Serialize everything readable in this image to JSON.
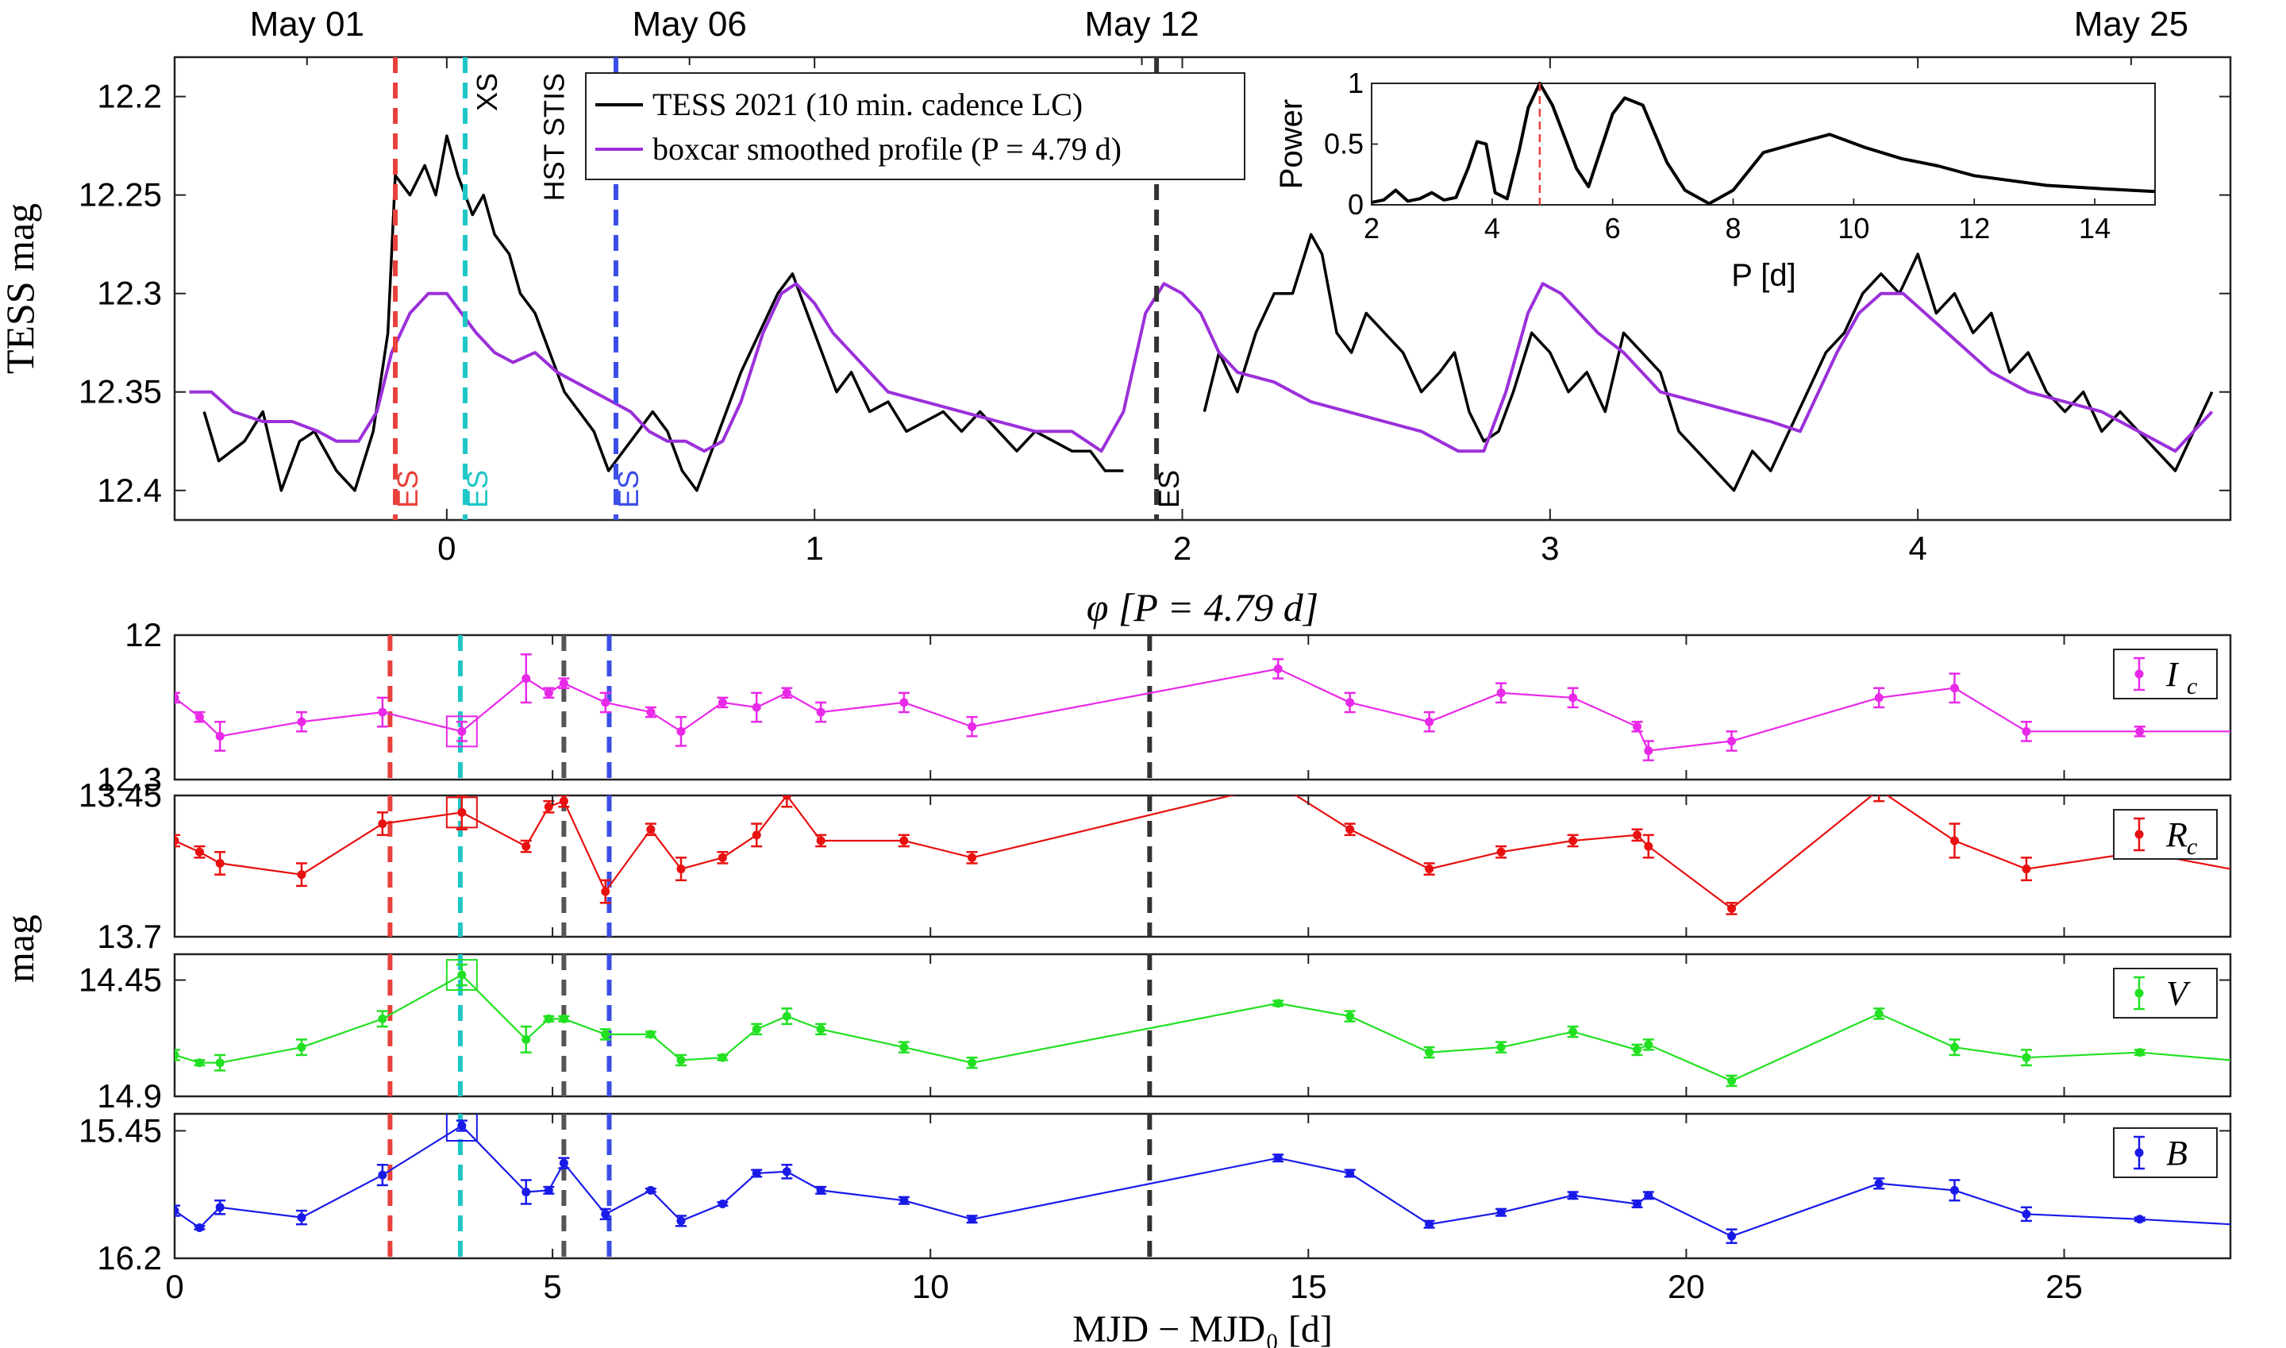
{
  "chart_data": [
    {
      "panel": "tess",
      "type": "line",
      "ylabel": "TESS mag",
      "xlabel": "φ [P = 4.79 d]",
      "x_axis": "phase",
      "xlim": [
        -0.74,
        4.85
      ],
      "ylim": [
        12.415,
        12.18
      ],
      "y_reversed": true,
      "xticks": [
        0,
        1,
        2,
        3,
        4
      ],
      "yticks": [
        12.2,
        12.25,
        12.3,
        12.35,
        12.4
      ],
      "xtick_labels": [
        "0",
        "1",
        "2",
        "3",
        "4"
      ],
      "ytick_labels": [
        "12.2",
        "12.25",
        "12.3",
        "12.35",
        "12.4"
      ],
      "date_labels": [
        {
          "text": "May 01",
          "phase": -0.38
        },
        {
          "text": "May 06",
          "phase": 0.66
        },
        {
          "text": "May 12",
          "phase": 1.89
        },
        {
          "text": "May 25",
          "phase": 4.58
        }
      ],
      "legend": {
        "position": "top-center",
        "entries": [
          {
            "label": "TESS 2021 (10 min. cadence LC)",
            "color": "#000000"
          },
          {
            "label": "boxcar smoothed profile (P = 4.79 d)",
            "color": "#9b30d9"
          }
        ]
      },
      "series": [
        {
          "name": "TESS 2021 (10 min. cadence LC)",
          "color": "#000000",
          "x": [
            -0.66,
            -0.62,
            -0.55,
            -0.5,
            -0.45,
            -0.4,
            -0.36,
            -0.3,
            -0.25,
            -0.2,
            -0.16,
            -0.14,
            -0.1,
            -0.06,
            -0.03,
            0.0,
            0.03,
            0.07,
            0.1,
            0.13,
            0.17,
            0.2,
            0.24,
            0.28,
            0.32,
            0.36,
            0.4,
            0.44,
            0.48,
            0.52,
            0.56,
            0.6,
            0.64,
            0.68,
            0.72,
            0.76,
            0.8,
            0.85,
            0.9,
            0.94,
            0.98,
            1.02,
            1.06,
            1.1,
            1.15,
            1.2,
            1.25,
            1.3,
            1.35,
            1.4,
            1.45,
            1.5,
            1.55,
            1.6,
            1.65,
            1.7,
            1.75,
            1.79,
            1.84
          ],
          "y": [
            12.36,
            12.385,
            12.375,
            12.36,
            12.4,
            12.375,
            12.37,
            12.39,
            12.4,
            12.37,
            12.32,
            12.24,
            12.25,
            12.235,
            12.25,
            12.22,
            12.24,
            12.26,
            12.25,
            12.27,
            12.28,
            12.3,
            12.31,
            12.33,
            12.35,
            12.36,
            12.37,
            12.39,
            12.38,
            12.37,
            12.36,
            12.37,
            12.39,
            12.4,
            12.38,
            12.36,
            12.34,
            12.32,
            12.3,
            12.29,
            12.31,
            12.33,
            12.35,
            12.34,
            12.36,
            12.355,
            12.37,
            12.365,
            12.36,
            12.37,
            12.36,
            12.37,
            12.38,
            12.37,
            12.375,
            12.38,
            12.38,
            12.39,
            12.39
          ]
        },
        {
          "name": "TESS 2021 (10 min. cadence LC) cont.",
          "color": "#000000",
          "x": [
            2.06,
            2.1,
            2.15,
            2.2,
            2.25,
            2.3,
            2.35,
            2.38,
            2.42,
            2.46,
            2.5,
            2.55,
            2.6,
            2.65,
            2.7,
            2.74,
            2.78,
            2.82,
            2.86,
            2.9,
            2.95,
            3.0,
            3.05,
            3.1,
            3.15,
            3.2,
            3.25,
            3.3,
            3.35,
            3.4,
            3.45,
            3.5,
            3.55,
            3.6,
            3.65,
            3.7,
            3.75,
            3.8,
            3.85,
            3.9,
            3.95,
            4.0,
            4.05,
            4.1,
            4.15,
            4.2,
            4.25,
            4.3,
            4.35,
            4.4,
            4.45,
            4.5,
            4.55,
            4.6,
            4.65,
            4.7,
            4.75,
            4.8
          ],
          "y": [
            12.36,
            12.33,
            12.35,
            12.32,
            12.3,
            12.3,
            12.27,
            12.28,
            12.32,
            12.33,
            12.31,
            12.32,
            12.33,
            12.35,
            12.34,
            12.33,
            12.36,
            12.375,
            12.37,
            12.35,
            12.32,
            12.33,
            12.35,
            12.34,
            12.36,
            12.32,
            12.33,
            12.34,
            12.37,
            12.38,
            12.39,
            12.4,
            12.38,
            12.39,
            12.37,
            12.35,
            12.33,
            12.32,
            12.3,
            12.29,
            12.3,
            12.28,
            12.31,
            12.3,
            12.32,
            12.31,
            12.34,
            12.33,
            12.35,
            12.36,
            12.35,
            12.37,
            12.36,
            12.37,
            12.38,
            12.39,
            12.37,
            12.35
          ]
        },
        {
          "name": "boxcar smoothed profile (P = 4.79 d)",
          "color": "#9b30d9",
          "x": [
            -0.7,
            -0.64,
            -0.58,
            -0.5,
            -0.42,
            -0.35,
            -0.3,
            -0.24,
            -0.19,
            -0.15,
            -0.1,
            -0.05,
            0.0,
            0.04,
            0.08,
            0.13,
            0.18,
            0.24,
            0.3,
            0.35,
            0.4,
            0.45,
            0.5,
            0.55,
            0.6,
            0.65,
            0.7,
            0.75,
            0.8,
            0.86,
            0.91,
            0.95,
            1.0,
            1.05,
            1.1,
            1.2,
            1.3,
            1.4,
            1.5,
            1.6,
            1.7,
            1.78,
            1.84,
            1.9,
            1.95,
            2.0,
            2.05,
            2.1,
            2.15,
            2.25,
            2.35,
            2.45,
            2.55,
            2.65,
            2.75,
            2.82,
            2.88,
            2.94,
            2.98,
            3.03,
            3.08,
            3.13,
            3.2,
            3.3,
            3.4,
            3.5,
            3.6,
            3.68,
            3.73,
            3.78,
            3.84,
            3.9,
            3.96,
            4.02,
            4.08,
            4.14,
            4.2,
            4.3,
            4.4,
            4.5,
            4.6,
            4.7,
            4.8
          ],
          "y": [
            12.35,
            12.35,
            12.36,
            12.365,
            12.365,
            12.37,
            12.375,
            12.375,
            12.36,
            12.33,
            12.31,
            12.3,
            12.3,
            12.31,
            12.32,
            12.33,
            12.335,
            12.33,
            12.34,
            12.345,
            12.35,
            12.355,
            12.36,
            12.37,
            12.375,
            12.375,
            12.38,
            12.375,
            12.355,
            12.32,
            12.3,
            12.295,
            12.305,
            12.32,
            12.33,
            12.35,
            12.355,
            12.36,
            12.365,
            12.37,
            12.37,
            12.38,
            12.36,
            12.31,
            12.295,
            12.3,
            12.31,
            12.33,
            12.34,
            12.345,
            12.355,
            12.36,
            12.365,
            12.37,
            12.38,
            12.38,
            12.35,
            12.31,
            12.295,
            12.3,
            12.31,
            12.32,
            12.33,
            12.35,
            12.355,
            12.36,
            12.365,
            12.37,
            12.35,
            12.33,
            12.31,
            12.3,
            12.3,
            12.31,
            12.32,
            12.33,
            12.34,
            12.35,
            12.355,
            12.36,
            12.37,
            12.38,
            12.36
          ]
        }
      ],
      "vlines": [
        {
          "phase": -0.14,
          "color": "#e8413c",
          "label": "ES"
        },
        {
          "phase": 0.05,
          "color": "#1fc6c6",
          "label": "ES"
        },
        {
          "phase": 0.05,
          "color": "#1fc6c6",
          "label": "XS",
          "label_color": "#000000",
          "label_pos": "top"
        },
        {
          "phase": 0.34,
          "color": "#555555",
          "label": "HST STIS",
          "label_color": "#000000",
          "label_pos": "top"
        },
        {
          "phase": 0.46,
          "color": "#3b4fe8",
          "label": "ES"
        },
        {
          "phase": 1.93,
          "color": "#333333",
          "label": "ES"
        }
      ],
      "label_colors": [
        "#e8413c",
        "#1fc6c6",
        "#3b4fe8",
        "#000000"
      ]
    },
    {
      "panel": "inset",
      "type": "line",
      "xlabel": "P [d]",
      "ylabel": "Power",
      "xlim": [
        2,
        15
      ],
      "ylim": [
        0,
        1
      ],
      "xticks": [
        2,
        4,
        6,
        8,
        10,
        12,
        14
      ],
      "yticks": [
        0,
        0.5,
        1
      ],
      "xtick_labels": [
        "2",
        "4",
        "6",
        "8",
        "10",
        "12",
        "14"
      ],
      "ytick_labels": [
        "0",
        "0.5",
        "1"
      ],
      "x": [
        2.0,
        2.2,
        2.4,
        2.6,
        2.8,
        3.0,
        3.2,
        3.4,
        3.6,
        3.75,
        3.9,
        4.05,
        4.25,
        4.45,
        4.6,
        4.79,
        5.0,
        5.2,
        5.4,
        5.6,
        5.8,
        6.0,
        6.2,
        6.5,
        6.9,
        7.2,
        7.6,
        8.0,
        8.5,
        9.0,
        9.6,
        10.2,
        10.8,
        11.4,
        12.0,
        13.2,
        14.2,
        15.0
      ],
      "y": [
        0.02,
        0.04,
        0.12,
        0.03,
        0.05,
        0.1,
        0.04,
        0.06,
        0.3,
        0.52,
        0.5,
        0.1,
        0.05,
        0.45,
        0.8,
        1.0,
        0.82,
        0.56,
        0.3,
        0.15,
        0.45,
        0.75,
        0.88,
        0.82,
        0.35,
        0.12,
        0.01,
        0.12,
        0.43,
        0.5,
        0.58,
        0.47,
        0.38,
        0.32,
        0.24,
        0.16,
        0.13,
        0.11
      ],
      "marker": {
        "x": 4.79,
        "color": "#e8413c"
      }
    },
    {
      "panel": "photometry",
      "type": "line",
      "xlabel": "MJD − MJD₀ [d]",
      "ylabel": "mag",
      "xlim": [
        0,
        27.2
      ],
      "xticks": [
        0,
        5,
        10,
        15,
        20,
        25
      ],
      "xtick_labels": [
        "0",
        "5",
        "10",
        "15",
        "20",
        "25"
      ],
      "vlines": [
        {
          "x": 2.85,
          "color": "#e8413c"
        },
        {
          "x": 3.78,
          "color": "#1fc6c6"
        },
        {
          "x": 5.15,
          "color": "#555555"
        },
        {
          "x": 5.75,
          "color": "#3b4fe8"
        },
        {
          "x": 12.9,
          "color": "#333333"
        }
      ],
      "x": [
        0.0,
        0.33,
        0.6,
        1.68,
        2.75,
        3.8,
        4.65,
        4.95,
        5.15,
        5.7,
        6.3,
        6.7,
        7.25,
        7.7,
        8.1,
        8.55,
        9.65,
        10.55,
        14.6,
        15.55,
        16.6,
        17.55,
        18.5,
        19.35,
        19.5,
        20.6,
        22.55,
        23.55,
        24.5,
        26.0,
        27.2
      ],
      "bands": [
        {
          "name": "I_c",
          "legend_main": "I",
          "legend_sub": "c",
          "color": "#e82ae8",
          "ylim": [
            12.3,
            12.0
          ],
          "yticks": [
            12.0,
            12.3
          ],
          "ytick_labels": [
            "12",
            "12.3"
          ],
          "y": [
            12.13,
            12.17,
            12.21,
            12.18,
            12.16,
            12.2,
            12.09,
            12.12,
            12.1,
            12.14,
            12.16,
            12.2,
            12.14,
            12.15,
            12.12,
            12.16,
            12.14,
            12.19,
            12.07,
            12.14,
            12.18,
            12.12,
            12.13,
            12.19,
            12.24,
            12.22,
            12.13,
            12.11,
            12.2,
            12.2,
            12.2
          ],
          "err": [
            0.01,
            0.01,
            0.03,
            0.02,
            0.03,
            0.02,
            0.05,
            0.01,
            0.01,
            0.02,
            0.01,
            0.03,
            0.01,
            0.03,
            0.01,
            0.02,
            0.02,
            0.02,
            0.02,
            0.02,
            0.02,
            0.02,
            0.02,
            0.01,
            0.02,
            0.02,
            0.02,
            0.03,
            0.02,
            0.01,
            0.01
          ],
          "boxed_index": 5
        },
        {
          "name": "R_c",
          "legend_main": "R",
          "legend_sub": "c",
          "color": "#e81010",
          "ylim": [
            13.7,
            13.45
          ],
          "yticks": [
            13.45,
            13.7
          ],
          "ytick_labels": [
            "13.45",
            "13.7"
          ],
          "y": [
            13.53,
            13.55,
            13.57,
            13.59,
            13.5,
            13.48,
            13.54,
            13.47,
            13.46,
            13.62,
            13.51,
            13.58,
            13.56,
            13.52,
            13.45,
            13.53,
            13.53,
            13.56,
            13.43,
            13.51,
            13.58,
            13.55,
            13.53,
            13.52,
            13.54,
            13.65,
            13.44,
            13.53,
            13.58,
            13.55,
            13.58
          ],
          "err": [
            0.01,
            0.01,
            0.02,
            0.02,
            0.02,
            0.03,
            0.01,
            0.01,
            0.01,
            0.02,
            0.01,
            0.02,
            0.01,
            0.02,
            0.02,
            0.01,
            0.01,
            0.01,
            0.01,
            0.01,
            0.01,
            0.01,
            0.01,
            0.01,
            0.02,
            0.01,
            0.02,
            0.03,
            0.02,
            0.01,
            0.01
          ],
          "boxed_index": 5
        },
        {
          "name": "V",
          "legend_main": "V",
          "legend_sub": "",
          "color": "#22e022",
          "ylim": [
            14.9,
            14.35
          ],
          "yticks": [
            14.45,
            14.9
          ],
          "ytick_labels": [
            "14.45",
            "14.9"
          ],
          "y": [
            14.74,
            14.77,
            14.77,
            14.71,
            14.6,
            14.43,
            14.68,
            14.6,
            14.6,
            14.66,
            14.66,
            14.76,
            14.75,
            14.64,
            14.59,
            14.64,
            14.71,
            14.77,
            14.54,
            14.59,
            14.73,
            14.71,
            14.65,
            14.72,
            14.7,
            14.84,
            14.58,
            14.71,
            14.75,
            14.73,
            14.76
          ],
          "err": [
            0.02,
            0.01,
            0.03,
            0.03,
            0.03,
            0.04,
            0.05,
            0.01,
            0.01,
            0.02,
            0.01,
            0.02,
            0.01,
            0.02,
            0.03,
            0.02,
            0.02,
            0.02,
            0.01,
            0.02,
            0.02,
            0.02,
            0.02,
            0.02,
            0.02,
            0.02,
            0.02,
            0.03,
            0.03,
            0.01,
            0.01
          ],
          "boxed_index": 5
        },
        {
          "name": "B",
          "legend_main": "B",
          "legend_sub": "",
          "color": "#1a1ae8",
          "ylim": [
            16.2,
            15.35
          ],
          "yticks": [
            15.45,
            16.2
          ],
          "ytick_labels": [
            "15.45",
            "16.2"
          ],
          "y": [
            15.92,
            16.02,
            15.9,
            15.96,
            15.71,
            15.42,
            15.81,
            15.8,
            15.64,
            15.94,
            15.8,
            15.98,
            15.88,
            15.7,
            15.69,
            15.8,
            15.86,
            15.97,
            15.61,
            15.7,
            16.0,
            15.93,
            15.83,
            15.88,
            15.83,
            16.07,
            15.76,
            15.8,
            15.94,
            15.97,
            16.0
          ],
          "err": [
            0.03,
            0.01,
            0.04,
            0.04,
            0.06,
            0.03,
            0.07,
            0.02,
            0.03,
            0.03,
            0.01,
            0.03,
            0.01,
            0.02,
            0.04,
            0.02,
            0.02,
            0.02,
            0.02,
            0.02,
            0.02,
            0.02,
            0.02,
            0.02,
            0.02,
            0.04,
            0.03,
            0.06,
            0.04,
            0.01,
            0.01
          ],
          "boxed_index": 5
        }
      ]
    }
  ]
}
